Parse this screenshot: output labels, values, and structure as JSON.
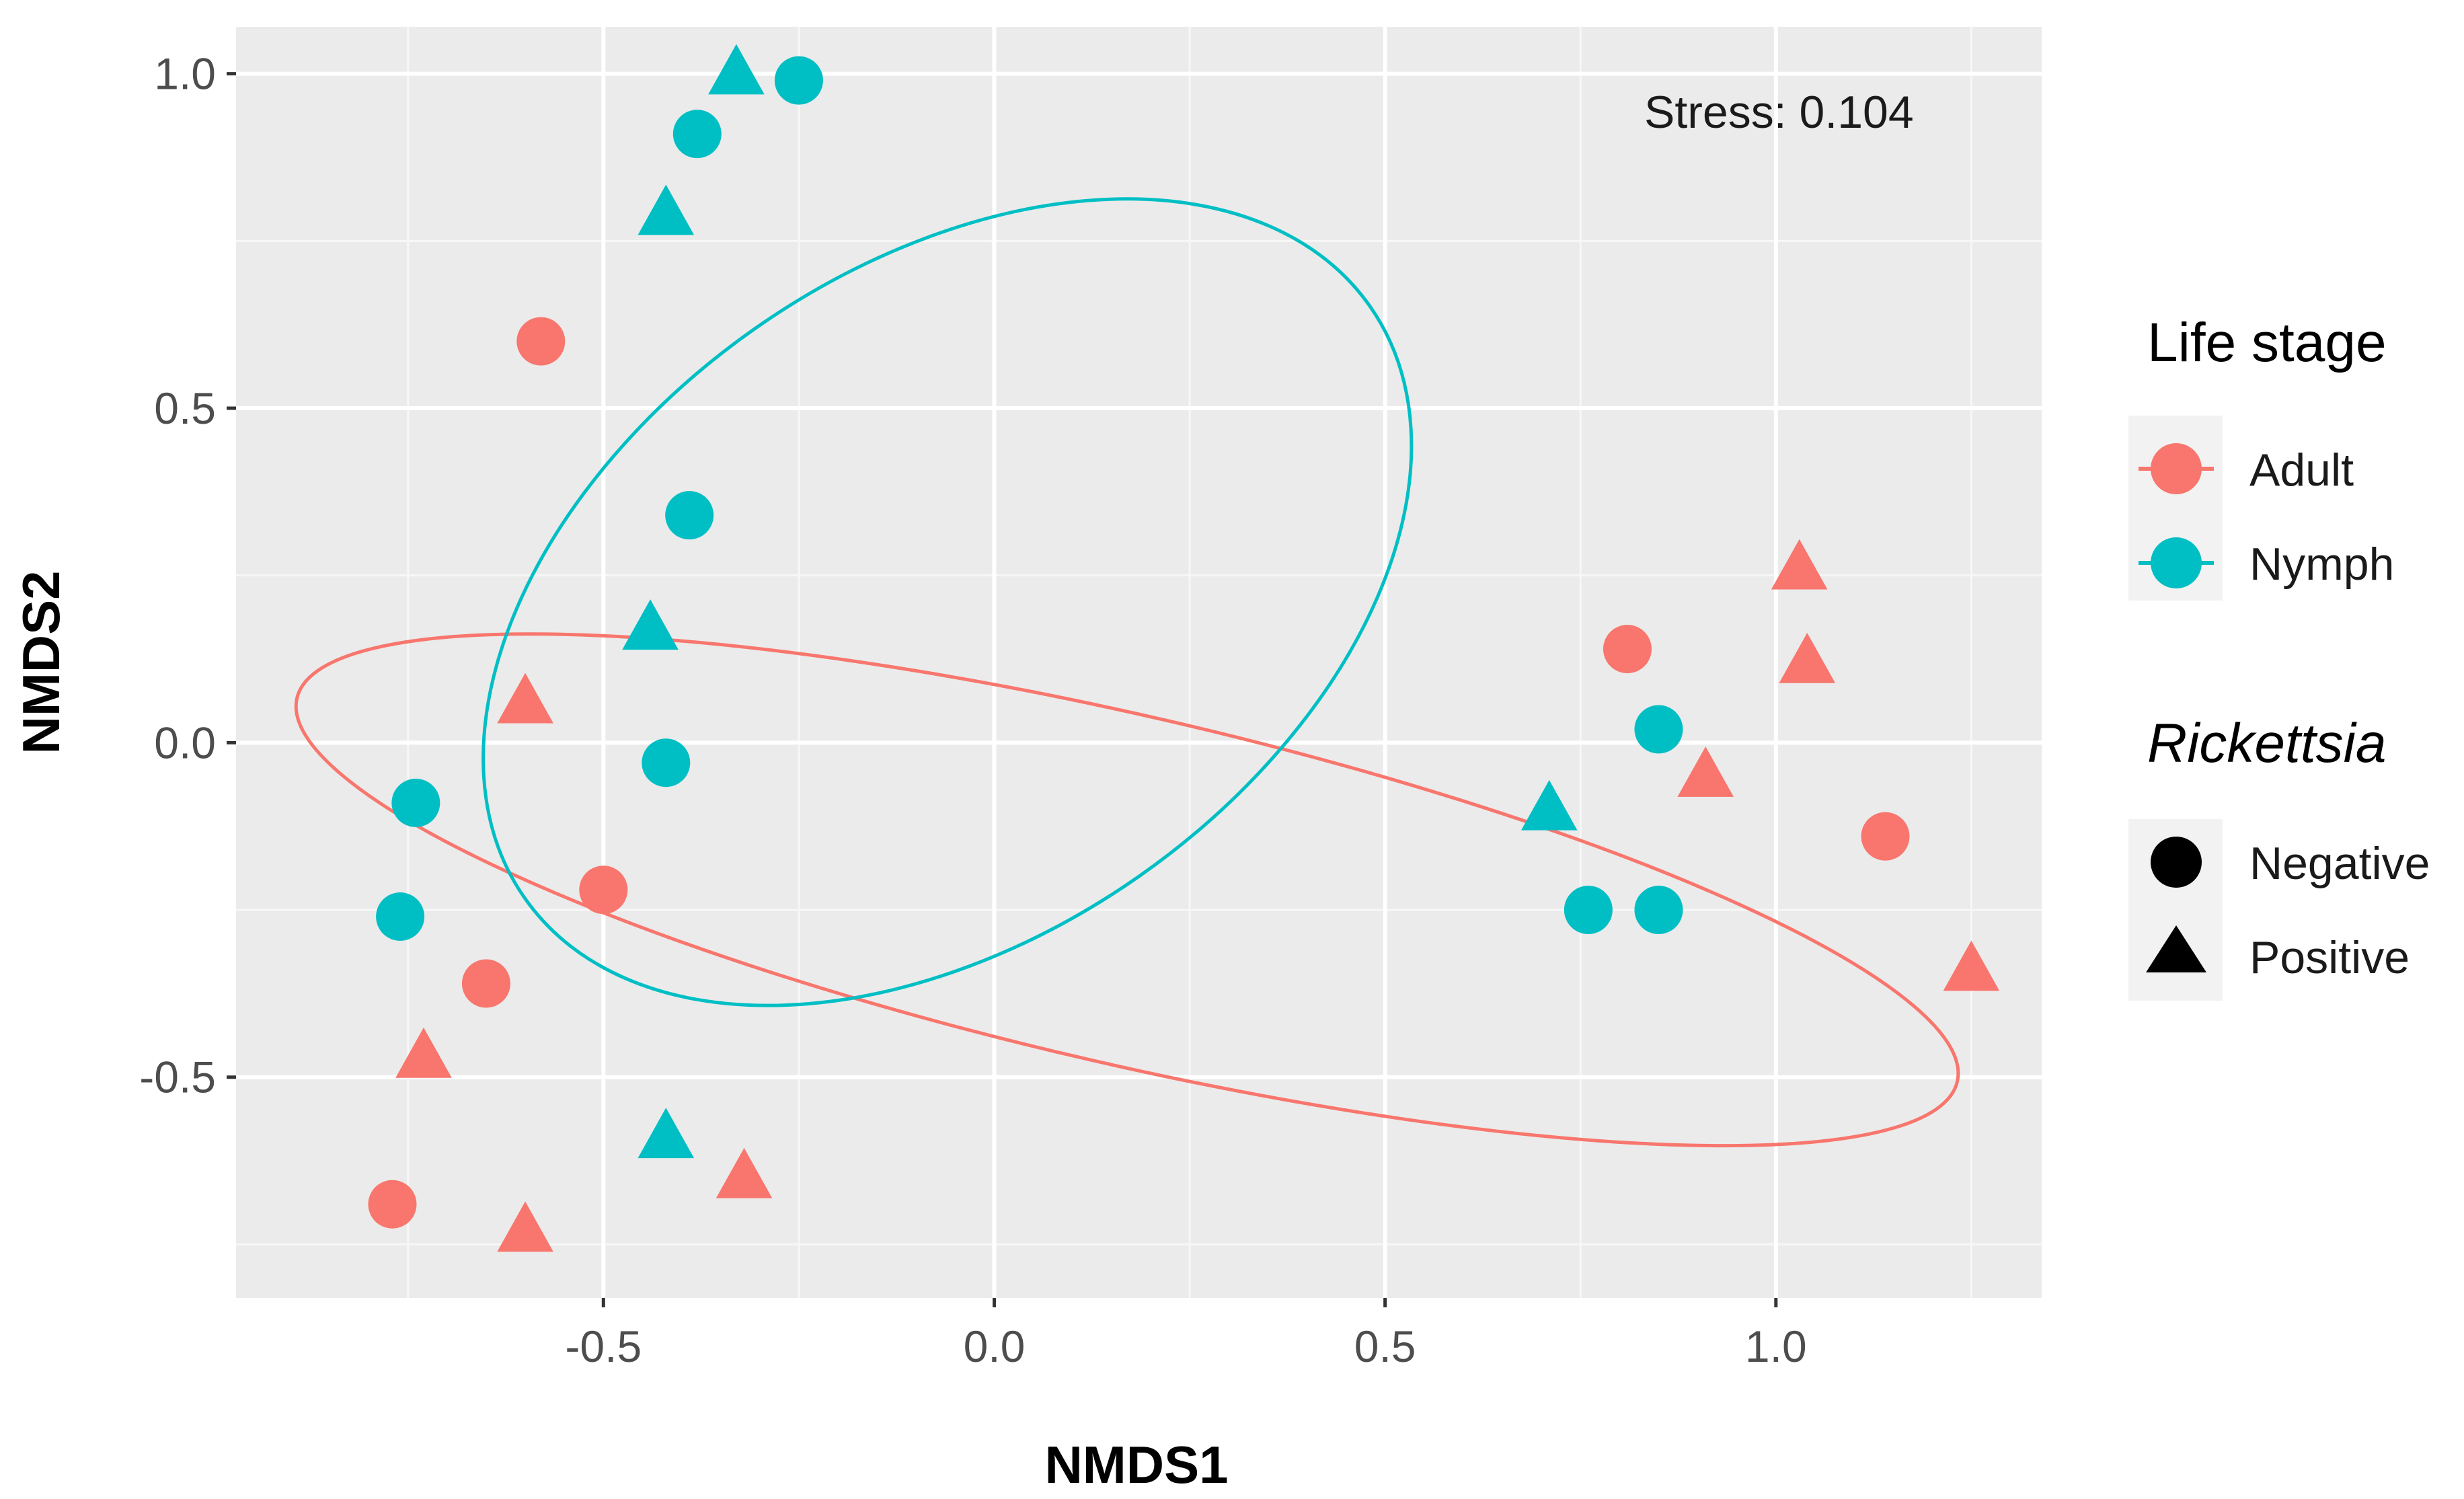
{
  "chart_data": {
    "type": "scatter",
    "title": "",
    "xlabel": "NMDS1",
    "ylabel": "NMDS2",
    "xlim": [
      -0.97,
      1.34
    ],
    "ylim": [
      -0.83,
      1.07
    ],
    "x_ticks": [
      -0.5,
      0.0,
      0.5,
      1.0
    ],
    "x_tick_labels": [
      "-0.5",
      "0.0",
      "0.5",
      "1.0"
    ],
    "y_ticks": [
      -0.5,
      0.0,
      0.5,
      1.0
    ],
    "y_tick_labels": [
      "-0.5",
      "0.0",
      "0.5",
      "1.0"
    ],
    "grid": true,
    "annotation": "Stress: 0.104",
    "legend_position": "right",
    "legend": {
      "color_title": "Life stage",
      "color_entries": [
        {
          "label": "Adult",
          "color": "#F8766D"
        },
        {
          "label": "Nymph",
          "color": "#00BFC4"
        }
      ],
      "shape_title": "Rickettsia",
      "shape_entries": [
        {
          "label": "Negative",
          "shape": "circle"
        },
        {
          "label": "Positive",
          "shape": "triangle"
        }
      ]
    },
    "series": [
      {
        "name": "Adult",
        "color": "#F8766D",
        "points": [
          {
            "x": -0.58,
            "y": 0.6,
            "rickettsia": "Negative"
          },
          {
            "x": -0.6,
            "y": 0.06,
            "rickettsia": "Positive"
          },
          {
            "x": -0.5,
            "y": -0.22,
            "rickettsia": "Negative"
          },
          {
            "x": -0.65,
            "y": -0.36,
            "rickettsia": "Negative"
          },
          {
            "x": -0.73,
            "y": -0.47,
            "rickettsia": "Positive"
          },
          {
            "x": -0.77,
            "y": -0.69,
            "rickettsia": "Negative"
          },
          {
            "x": -0.6,
            "y": -0.73,
            "rickettsia": "Positive"
          },
          {
            "x": -0.32,
            "y": -0.65,
            "rickettsia": "Positive"
          },
          {
            "x": 0.81,
            "y": 0.14,
            "rickettsia": "Negative"
          },
          {
            "x": 1.03,
            "y": 0.26,
            "rickettsia": "Positive"
          },
          {
            "x": 1.04,
            "y": 0.12,
            "rickettsia": "Positive"
          },
          {
            "x": 0.91,
            "y": -0.05,
            "rickettsia": "Positive"
          },
          {
            "x": 1.14,
            "y": -0.14,
            "rickettsia": "Negative"
          },
          {
            "x": 1.25,
            "y": -0.34,
            "rickettsia": "Positive"
          }
        ]
      },
      {
        "name": "Nymph",
        "color": "#00BFC4",
        "points": [
          {
            "x": -0.33,
            "y": 1.0,
            "rickettsia": "Positive"
          },
          {
            "x": -0.25,
            "y": 0.99,
            "rickettsia": "Negative"
          },
          {
            "x": -0.38,
            "y": 0.91,
            "rickettsia": "Negative"
          },
          {
            "x": -0.42,
            "y": 0.79,
            "rickettsia": "Positive"
          },
          {
            "x": -0.39,
            "y": 0.34,
            "rickettsia": "Negative"
          },
          {
            "x": -0.44,
            "y": 0.17,
            "rickettsia": "Positive"
          },
          {
            "x": -0.42,
            "y": -0.03,
            "rickettsia": "Negative"
          },
          {
            "x": -0.74,
            "y": -0.09,
            "rickettsia": "Negative"
          },
          {
            "x": -0.76,
            "y": -0.26,
            "rickettsia": "Negative"
          },
          {
            "x": -0.42,
            "y": -0.59,
            "rickettsia": "Positive"
          },
          {
            "x": 0.71,
            "y": -0.1,
            "rickettsia": "Positive"
          },
          {
            "x": 0.85,
            "y": 0.02,
            "rickettsia": "Negative"
          },
          {
            "x": 0.76,
            "y": -0.25,
            "rickettsia": "Negative"
          },
          {
            "x": 0.85,
            "y": -0.25,
            "rickettsia": "Negative"
          }
        ]
      }
    ],
    "ellipses": [
      {
        "group": "Adult",
        "color": "#F8766D",
        "center": [
          0.17,
          -0.22
        ],
        "rx": 1.09,
        "ry": 0.26,
        "angle_deg": 13
      },
      {
        "group": "Nymph",
        "color": "#00BFC4",
        "center": [
          -0.06,
          0.21
        ],
        "rx": 0.66,
        "ry": 0.5,
        "angle_deg": -35
      }
    ]
  }
}
